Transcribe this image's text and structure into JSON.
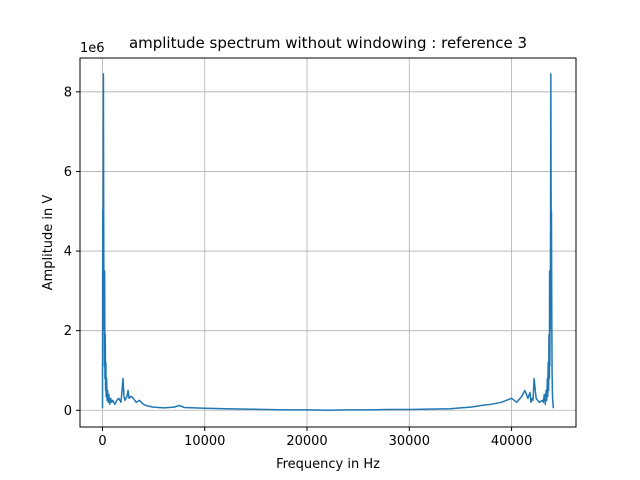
{
  "chart_data": {
    "type": "line",
    "title": "amplitude spectrum without windowing : reference 3",
    "xlabel": "Frequency in Hz",
    "ylabel": "Amplitude in V",
    "y_offset_label": "1e6",
    "y_multiplier": 1000000,
    "xlim": [
      -2200,
      46300
    ],
    "ylim": [
      -0.42,
      8.85
    ],
    "xticks": [
      0,
      10000,
      20000,
      30000,
      40000
    ],
    "yticks": [
      0,
      2,
      4,
      6,
      8
    ],
    "grid": true,
    "line_color": "#1f77b4",
    "series": [
      {
        "x": [
          0,
          25,
          50,
          70,
          90,
          110,
          130,
          150,
          170,
          190,
          210,
          240,
          270,
          300,
          330,
          360,
          400,
          450,
          500,
          560,
          620,
          700,
          800,
          900,
          1000,
          1200,
          1400,
          1600,
          1800,
          1900,
          2000,
          2100,
          2200,
          2400,
          2500,
          2600,
          2800,
          3000,
          3300,
          3600,
          4000,
          4500,
          5000,
          6000,
          7000,
          7500,
          8000,
          9000,
          10000,
          12000,
          14000,
          16000,
          18000,
          20000,
          22050,
          24000,
          26000,
          28000,
          30000,
          32000,
          34000,
          35000,
          36000,
          36600,
          37000,
          38000,
          39000,
          39500,
          40000,
          40500,
          41000,
          41300,
          41600,
          41800,
          41900,
          42000,
          42100,
          42200,
          42400,
          42700,
          43000,
          43100,
          43200,
          43300,
          43380,
          43440,
          43500,
          43540,
          43580,
          43620,
          43660,
          43700,
          43720,
          43740,
          43760,
          43780,
          43800,
          43820,
          43840,
          43860,
          43880,
          43900,
          43930,
          43960,
          43990,
          44010,
          44040,
          44070,
          44100
        ],
        "values": [
          0.05,
          5.0,
          4.2,
          5.9,
          8.45,
          5.6,
          3.5,
          2.0,
          2.7,
          1.1,
          3.5,
          0.8,
          1.9,
          0.5,
          1.2,
          0.35,
          0.8,
          0.25,
          0.5,
          0.2,
          0.4,
          0.15,
          0.3,
          0.2,
          0.25,
          0.15,
          0.25,
          0.3,
          0.2,
          0.45,
          0.8,
          0.35,
          0.25,
          0.35,
          0.5,
          0.3,
          0.35,
          0.3,
          0.2,
          0.25,
          0.15,
          0.1,
          0.08,
          0.06,
          0.08,
          0.12,
          0.07,
          0.06,
          0.05,
          0.04,
          0.03,
          0.02,
          0.01,
          0.01,
          0.0,
          0.01,
          0.01,
          0.02,
          0.02,
          0.03,
          0.04,
          0.06,
          0.08,
          0.1,
          0.12,
          0.15,
          0.2,
          0.25,
          0.3,
          0.2,
          0.35,
          0.5,
          0.3,
          0.45,
          0.2,
          0.3,
          0.25,
          0.8,
          0.3,
          0.2,
          0.25,
          0.2,
          0.4,
          0.15,
          0.5,
          0.25,
          0.8,
          0.35,
          1.2,
          0.5,
          1.9,
          0.8,
          3.5,
          1.1,
          2.7,
          2.0,
          3.5,
          5.6,
          8.45,
          5.9,
          4.2,
          5.0,
          2.5,
          1.0,
          0.5,
          0.3,
          0.2,
          0.1,
          0.05
        ]
      }
    ]
  }
}
